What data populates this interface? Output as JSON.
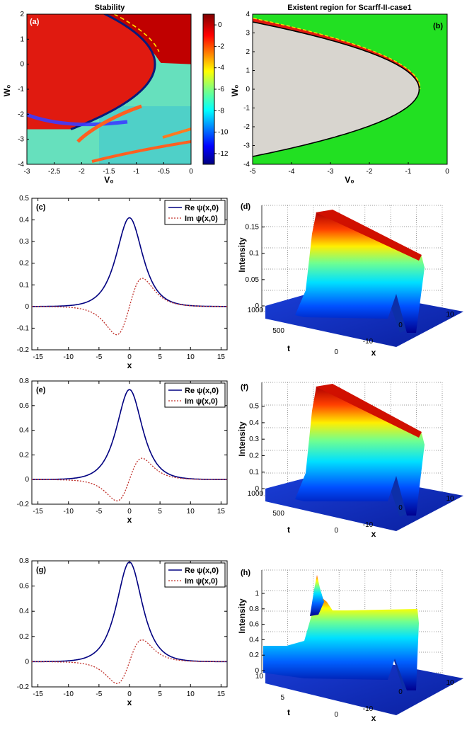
{
  "chart_data": [
    {
      "panel": "a",
      "type": "heatmap",
      "title": "Stability",
      "panel_label": "(a)",
      "xlabel": "V₀",
      "ylabel": "W₀",
      "xlim": [
        -3,
        0
      ],
      "ylim": [
        -4,
        2
      ],
      "xticks": [
        "-3",
        "-2.5",
        "-2",
        "-1.5",
        "-1",
        "-0.5",
        "0"
      ],
      "yticks": [
        "2",
        "1",
        "0",
        "-1",
        "-2",
        "-3",
        "-4"
      ],
      "colorbar": {
        "ticks": [
          "0",
          "-2",
          "-4",
          "-6",
          "-8",
          "-10",
          "-12"
        ],
        "range": [
          -13,
          1
        ]
      },
      "boundary": "parabola W0^2 = -4.4 (V0 + 0.66)"
    },
    {
      "panel": "b",
      "type": "heatmap",
      "title": "Existent region for Scarff-II-case1",
      "panel_label": "(b)",
      "xlabel": "V₀",
      "ylabel": "W₀",
      "xlim": [
        -5,
        0
      ],
      "ylim": [
        -4,
        4
      ],
      "xticks": [
        "-5",
        "-4",
        "-3",
        "-2",
        "-1",
        "0"
      ],
      "yticks": [
        "4",
        "3",
        "2",
        "1",
        "0",
        "-1",
        "-2",
        "-3",
        "-4"
      ],
      "regions": [
        "grey interior of parabola",
        "red thin band",
        "green exterior"
      ]
    },
    {
      "panel": "c",
      "type": "line",
      "panel_label": "(c)",
      "xlabel": "x",
      "xlim": [
        -16,
        16
      ],
      "ylim": [
        -0.2,
        0.5
      ],
      "xticks": [
        "-15",
        "-10",
        "-5",
        "0",
        "5",
        "10",
        "15"
      ],
      "yticks": [
        "0.5",
        "0.4",
        "0.3",
        "0.2",
        "0.1",
        "0",
        "-0.1",
        "-0.2"
      ],
      "legend": [
        "Re ψ(x,0)",
        "Im ψ(x,0)"
      ],
      "series": [
        {
          "name": "Re ψ(x,0)",
          "peak": 0.41,
          "width": 1.9
        },
        {
          "name": "Im ψ(x,0)",
          "extremum": 0.12,
          "offset": 1.55,
          "width": 1.9
        }
      ]
    },
    {
      "panel": "d",
      "type": "area",
      "panel_label": "(d)",
      "zlabel": "Intensity",
      "tlabel": "t",
      "xlabel": "x",
      "zticks": [
        "0.15",
        "0.1",
        "0.05",
        "0"
      ],
      "tticks": [
        "1000",
        "500",
        "0"
      ],
      "xticks": [
        "-10",
        "0",
        "10"
      ],
      "peak_intensity": 0.17
    },
    {
      "panel": "e",
      "type": "line",
      "panel_label": "(e)",
      "xlabel": "x",
      "xlim": [
        -16,
        16
      ],
      "ylim": [
        -0.2,
        0.8
      ],
      "xticks": [
        "-15",
        "-10",
        "-5",
        "0",
        "5",
        "10",
        "15"
      ],
      "yticks": [
        "0.8",
        "0.6",
        "0.4",
        "0.2",
        "0",
        "-0.2"
      ],
      "legend": [
        "Re ψ(x,0)",
        "Im ψ(x,0)"
      ],
      "series": [
        {
          "name": "Re ψ(x,0)",
          "peak": 0.73,
          "width": 1.85
        },
        {
          "name": "Im ψ(x,0)",
          "extremum": 0.16,
          "offset": 1.5,
          "width": 1.85
        }
      ]
    },
    {
      "panel": "f",
      "type": "area",
      "panel_label": "(f)",
      "zlabel": "Intensity",
      "tlabel": "t",
      "xlabel": "x",
      "zticks": [
        "0.5",
        "0.4",
        "0.3",
        "0.2",
        "0.1",
        "0"
      ],
      "tticks": [
        "1000",
        "500",
        "0"
      ],
      "xticks": [
        "-10",
        "0",
        "10"
      ],
      "peak_intensity": 0.54
    },
    {
      "panel": "g",
      "type": "line",
      "panel_label": "(g)",
      "xlabel": "x",
      "xlim": [
        -16,
        16
      ],
      "ylim": [
        -0.2,
        0.8
      ],
      "xticks": [
        "-15",
        "-10",
        "-5",
        "0",
        "5",
        "10",
        "15"
      ],
      "yticks": [
        "0.8",
        "0.6",
        "0.4",
        "0.2",
        "0",
        "-0.2"
      ],
      "legend": [
        "Re ψ(x,0)",
        "Im ψ(x,0)"
      ],
      "series": [
        {
          "name": "Re ψ(x,0)",
          "peak": 0.79,
          "width": 1.85
        },
        {
          "name": "Im ψ(x,0)",
          "extremum": 0.16,
          "offset": 1.5,
          "width": 1.85
        }
      ]
    },
    {
      "panel": "h",
      "type": "area",
      "panel_label": "(h)",
      "zlabel": "Intensity",
      "tlabel": "t",
      "xlabel": "x",
      "zticks": [
        "1",
        "0.8",
        "0.6",
        "0.4",
        "0.2",
        "0"
      ],
      "tticks": [
        "10",
        "5",
        "0"
      ],
      "xticks": [
        "-10",
        "0",
        "10"
      ],
      "peak_intensity": 1.08
    }
  ]
}
